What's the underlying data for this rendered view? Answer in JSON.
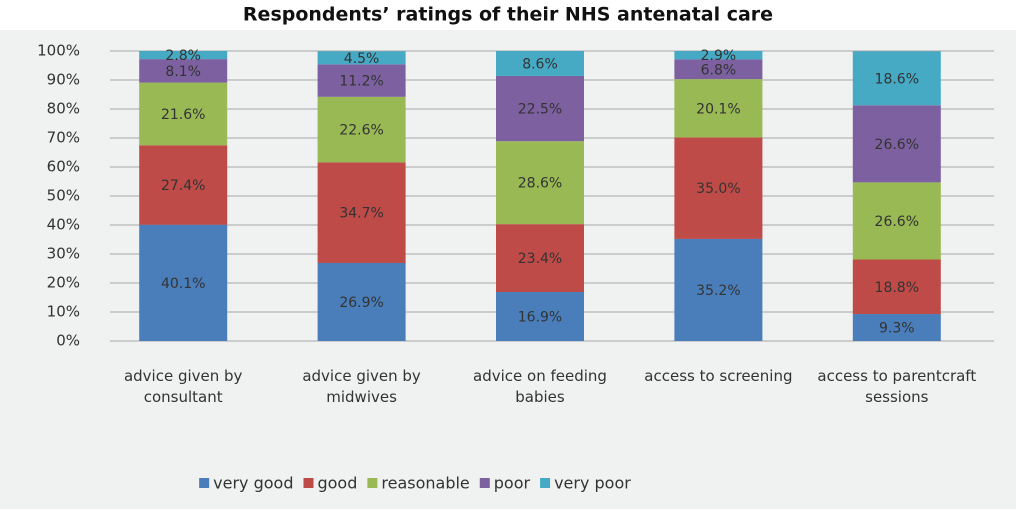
{
  "chart_data": {
    "type": "stacked_bar",
    "title": "Respondents’ ratings of their NHS antenatal care",
    "categories": [
      "advice given by consultant",
      "advice given by midwives",
      "advice on feeding babies",
      "access to screening",
      "access to parentcraft sessions"
    ],
    "series": [
      {
        "name": "very good",
        "color": "#4a7ebb",
        "values": [
          40.1,
          26.9,
          16.9,
          35.2,
          9.3
        ],
        "value_labels": [
          "40.1%",
          "26.9%",
          "16.9%",
          "35.2%",
          "9.3%"
        ]
      },
      {
        "name": "good",
        "color": "#be4b48",
        "values": [
          27.4,
          34.7,
          23.4,
          35.0,
          18.8
        ],
        "value_labels": [
          "27.4%",
          "34.7%",
          "23.4%",
          "35.0%",
          "18.8%"
        ]
      },
      {
        "name": "reasonable",
        "color": "#98b954",
        "values": [
          21.6,
          22.6,
          28.6,
          20.1,
          26.6
        ],
        "value_labels": [
          "21.6%",
          "22.6%",
          "28.6%",
          "20.1%",
          "26.6%"
        ]
      },
      {
        "name": "poor",
        "color": "#7d60a0",
        "values": [
          8.1,
          11.2,
          22.5,
          6.8,
          26.6
        ],
        "value_labels": [
          "8.1%",
          "11.2%",
          "22.5%",
          "6.8%",
          "26.6%"
        ]
      },
      {
        "name": "very poor",
        "color": "#46aac5",
        "values": [
          2.8,
          4.5,
          8.6,
          2.9,
          18.6
        ],
        "value_labels": [
          "2.8%",
          "4.5%",
          "8.6%",
          "2.9%",
          "18.6%"
        ]
      }
    ],
    "ylim": [
      0,
      100
    ],
    "yticks": [
      {
        "value": 0,
        "label": "0%"
      },
      {
        "value": 10,
        "label": "10%"
      },
      {
        "value": 20,
        "label": "20%"
      },
      {
        "value": 30,
        "label": "30%"
      },
      {
        "value": 40,
        "label": "40%"
      },
      {
        "value": 50,
        "label": "50%"
      },
      {
        "value": 60,
        "label": "60%"
      },
      {
        "value": 70,
        "label": "70%"
      },
      {
        "value": 80,
        "label": "80%"
      },
      {
        "value": 90,
        "label": "90%"
      },
      {
        "value": 100,
        "label": "100%"
      }
    ],
    "grid": true,
    "legend": "bottom"
  }
}
